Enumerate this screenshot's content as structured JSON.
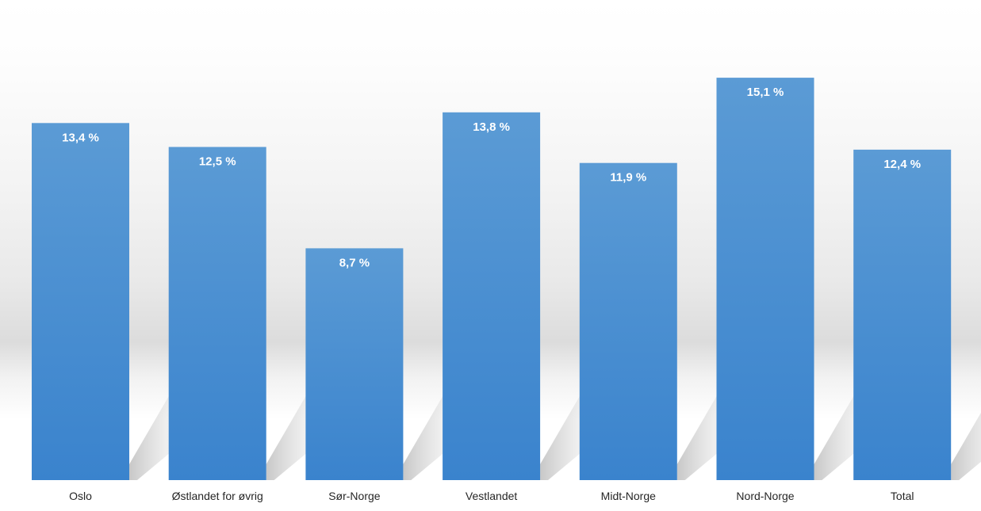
{
  "chart_data": {
    "type": "bar",
    "title": "",
    "xlabel": "",
    "ylabel": "",
    "categories": [
      "Oslo",
      "Østlandet for øvrig",
      "Sør-Norge",
      "Vestlandet",
      "Midt-Norge",
      "Nord-Norge",
      "Total"
    ],
    "values": [
      13.4,
      12.5,
      8.7,
      13.8,
      11.9,
      15.1,
      12.4
    ],
    "data_labels": [
      "13,4 %",
      "12,5 %",
      "8,7 %",
      "13,8 %",
      "11,9 %",
      "15,1 %",
      "12,4 %"
    ],
    "ylim": [
      0,
      16.5
    ],
    "grid": false,
    "legend": "none",
    "bar_color_top": "#5b9bd5",
    "bar_color_bottom": "#3a83cd",
    "label_color": "#ffffff"
  }
}
